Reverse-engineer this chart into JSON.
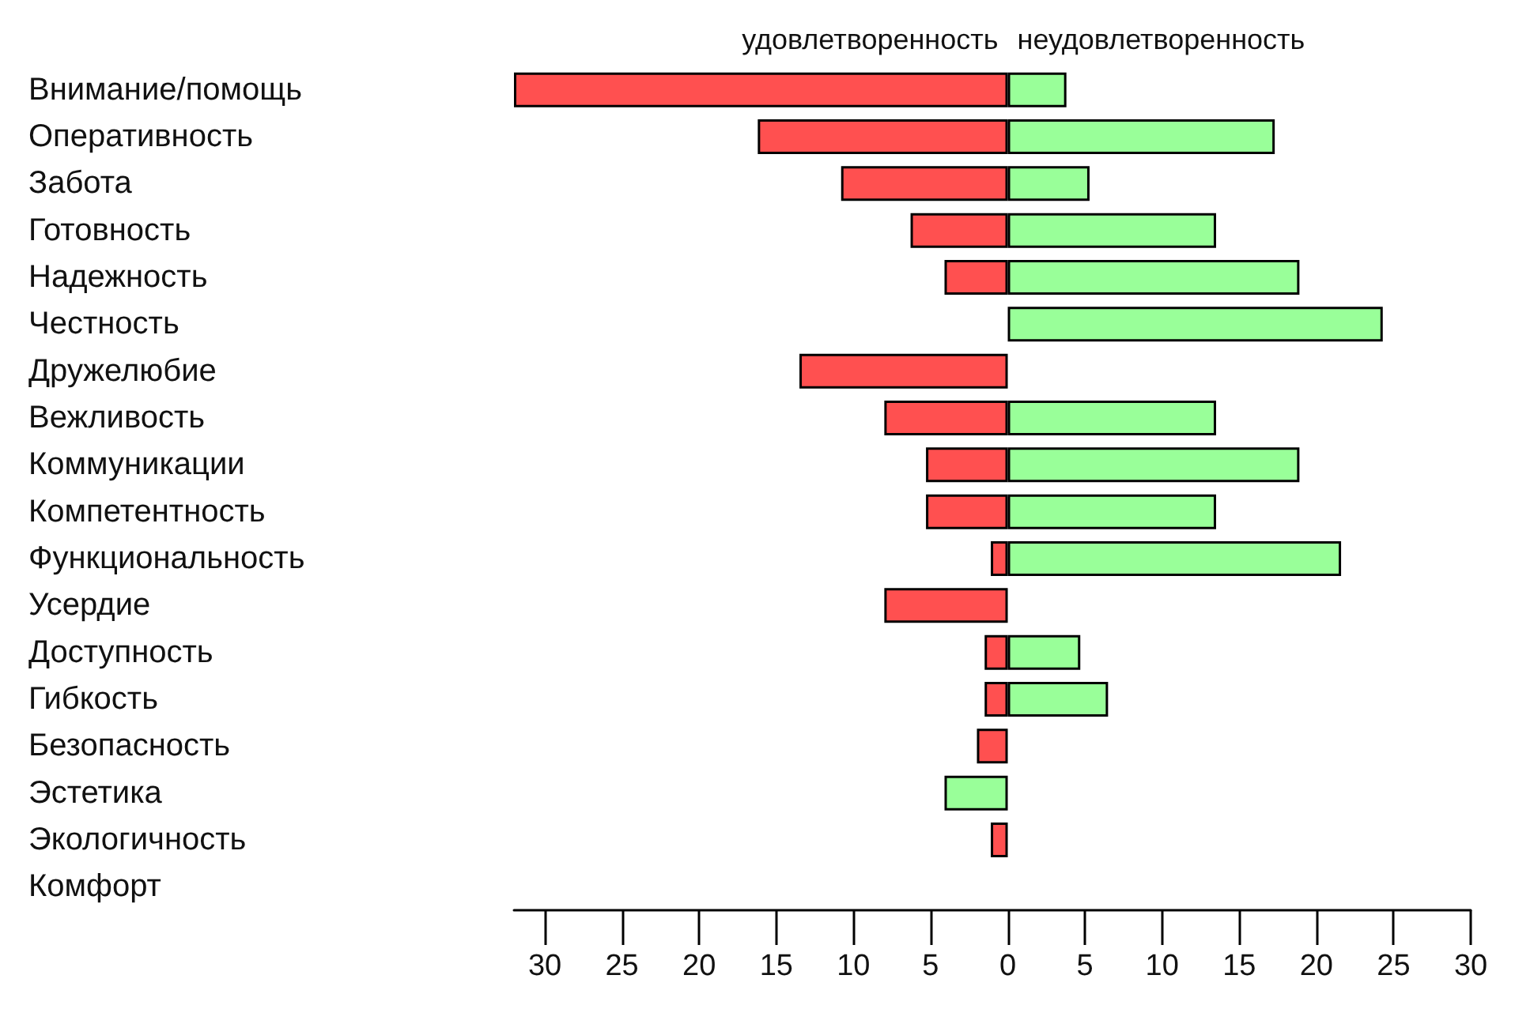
{
  "chart_data": {
    "type": "bar",
    "orientation": "horizontal",
    "categories": [
      "Внимание/помощь",
      "Оперативность",
      "Забота",
      "Готовность",
      "Надежность",
      "Честность",
      "Дружелюбие",
      "Вежливость",
      "Коммуникации",
      "Компетентность",
      "Функциональность",
      "Усердие",
      "Доступность",
      "Гибкость",
      "Безопасность",
      "Эстетика",
      "Экологичность",
      "Комфорт"
    ],
    "series": [
      {
        "name": "удовлетворенность",
        "color": "#ff5050",
        "values": [
          -32,
          -16.2,
          -10.8,
          -6.3,
          -4.1,
          null,
          -13.5,
          -8,
          -5.3,
          -5.3,
          -1.1,
          -8,
          -1.5,
          -1.5,
          -2,
          null,
          -1.1,
          null
        ]
      },
      {
        "name": "неудовлетворенность",
        "color": "#99ff99",
        "values": [
          3.8,
          17.3,
          5.3,
          13.5,
          18.9,
          24.3,
          null,
          13.5,
          18.9,
          13.5,
          21.6,
          null,
          4.7,
          6.5,
          null,
          -4.1,
          null,
          null
        ]
      }
    ],
    "xlim": [
      -32,
      30
    ],
    "xticks": [
      {
        "value": -30,
        "label": "30"
      },
      {
        "value": -25,
        "label": "25"
      },
      {
        "value": -20,
        "label": "20"
      },
      {
        "value": -15,
        "label": "15"
      },
      {
        "value": -10,
        "label": "10"
      },
      {
        "value": -5,
        "label": "5"
      },
      0,
      5,
      10,
      15,
      20,
      25,
      30
    ],
    "stacked": true,
    "grid": false,
    "legend": false
  }
}
